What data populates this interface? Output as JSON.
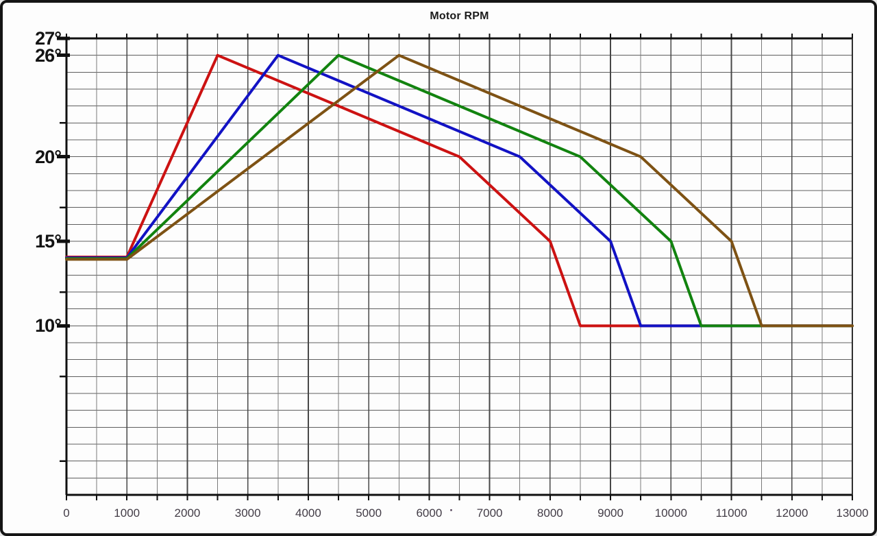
{
  "chart_data": {
    "type": "line",
    "title": "Motor RPM",
    "xlabel": "",
    "ylabel": "",
    "xlim": [
      0,
      13000
    ],
    "ylim": [
      0,
      27
    ],
    "x_major_tick_step": 1000,
    "x_minor_tick_step": 500,
    "x_tick_labels": [
      "0",
      "1000",
      "2000",
      "3000",
      "4000",
      "5000",
      "6000",
      "7000",
      "8000",
      "9000",
      "10000",
      "11000",
      "12000",
      "13000"
    ],
    "y_unit": "°",
    "y_labeled_ticks": [
      27,
      26,
      20,
      15,
      10
    ],
    "y_medium_ticks": [
      22,
      17,
      12,
      7,
      2
    ],
    "y_grid_step": 1,
    "grid": "on",
    "legend": "none",
    "series": [
      {
        "name": "curve-red",
        "color": "#cc1212",
        "points": [
          [
            0,
            14
          ],
          [
            1000,
            14
          ],
          [
            2500,
            26
          ],
          [
            6500,
            20
          ],
          [
            8000,
            15
          ],
          [
            8500,
            10
          ],
          [
            13000,
            10
          ]
        ]
      },
      {
        "name": "curve-blue",
        "color": "#1212c4",
        "points": [
          [
            0,
            14
          ],
          [
            1000,
            14
          ],
          [
            3500,
            26
          ],
          [
            7500,
            20
          ],
          [
            9000,
            15
          ],
          [
            9500,
            10
          ],
          [
            13000,
            10
          ]
        ]
      },
      {
        "name": "curve-green",
        "color": "#12830f",
        "points": [
          [
            0,
            14
          ],
          [
            1000,
            14
          ],
          [
            4500,
            26
          ],
          [
            8500,
            20
          ],
          [
            10000,
            15
          ],
          [
            10500,
            10
          ],
          [
            13000,
            10
          ]
        ]
      },
      {
        "name": "curve-brown",
        "color": "#7e5214",
        "points": [
          [
            0,
            14
          ],
          [
            1000,
            14
          ],
          [
            5500,
            26
          ],
          [
            9500,
            20
          ],
          [
            11000,
            15
          ],
          [
            11500,
            10
          ],
          [
            13000,
            10
          ]
        ]
      }
    ]
  },
  "artifacts": {
    "stray_mark": "·"
  },
  "colors": {
    "background": "#fdfdfd",
    "frame_border": "#151515",
    "axis": "#101010",
    "grid_horizontal": "#5e5e5e",
    "grid_minor_vertical": "#7a7a7a",
    "grid_major_vertical": "#474747",
    "title_text": "#1c1c1c",
    "y_label_text": "#141414",
    "x_label_text": "#423c46"
  }
}
